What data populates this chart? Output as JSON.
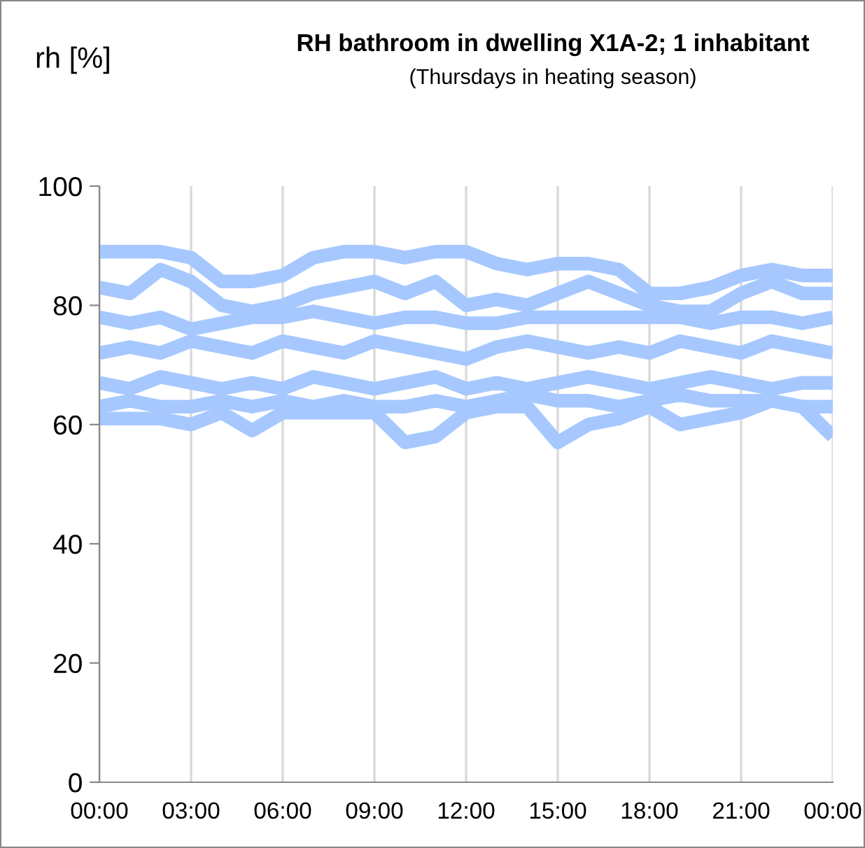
{
  "chart_data": {
    "type": "line",
    "title": "RH bathroom in dwelling X1A-2; 1 inhabitant",
    "subtitle": "(Thursdays in heating season)",
    "ylabel": "rh [%]",
    "x": [
      0,
      1,
      2,
      3,
      4,
      5,
      6,
      7,
      8,
      9,
      10,
      11,
      12,
      13,
      14,
      15,
      16,
      17,
      18,
      19,
      20,
      21,
      22,
      23,
      24
    ],
    "series": [
      {
        "color": "#a6c8ff",
        "values": [
          89,
          89,
          89,
          88,
          84,
          84,
          85,
          88,
          89,
          89,
          88,
          89,
          89,
          87,
          86,
          87,
          87,
          86,
          82,
          82,
          83,
          85,
          86,
          85,
          85
        ]
      },
      {
        "color": "#a6c8ff",
        "values": [
          83,
          82,
          86,
          84,
          80,
          79,
          80,
          82,
          83,
          84,
          82,
          84,
          80,
          81,
          80,
          82,
          84,
          82,
          80,
          79,
          79,
          82,
          84,
          82,
          82
        ]
      },
      {
        "color": "#a6c8ff",
        "values": [
          78,
          77,
          78,
          76,
          77,
          78,
          78,
          79,
          78,
          77,
          78,
          78,
          77,
          77,
          78,
          78,
          78,
          78,
          78,
          78,
          77,
          78,
          78,
          77,
          78
        ]
      },
      {
        "color": "#a6c8ff",
        "values": [
          72,
          73,
          72,
          74,
          73,
          72,
          74,
          73,
          72,
          74,
          73,
          72,
          71,
          73,
          74,
          73,
          72,
          73,
          72,
          74,
          73,
          72,
          74,
          73,
          72
        ]
      },
      {
        "color": "#a6c8ff",
        "values": [
          67,
          66,
          68,
          67,
          66,
          67,
          66,
          68,
          67,
          66,
          67,
          68,
          66,
          67,
          66,
          67,
          68,
          67,
          66,
          67,
          68,
          67,
          66,
          67,
          67
        ]
      },
      {
        "color": "#a6c8ff",
        "values": [
          63,
          64,
          63,
          63,
          64,
          63,
          64,
          63,
          64,
          63,
          63,
          64,
          63,
          64,
          65,
          64,
          64,
          63,
          64,
          65,
          64,
          64,
          64,
          63,
          63
        ]
      },
      {
        "color": "#a6c8ff",
        "values": [
          61,
          61,
          61,
          60,
          62,
          59,
          62,
          62,
          62,
          62,
          57,
          58,
          62,
          63,
          63,
          57,
          60,
          61,
          63,
          60,
          61,
          62,
          64,
          63,
          58
        ]
      }
    ],
    "xlim": [
      0,
      24
    ],
    "ylim": [
      0,
      100
    ],
    "xticks": [
      {
        "value": 0,
        "label": "00:00"
      },
      {
        "value": 3,
        "label": "03:00"
      },
      {
        "value": 6,
        "label": "06:00"
      },
      {
        "value": 9,
        "label": "09:00"
      },
      {
        "value": 12,
        "label": "12:00"
      },
      {
        "value": 15,
        "label": "15:00"
      },
      {
        "value": 18,
        "label": "18:00"
      },
      {
        "value": 21,
        "label": "21:00"
      },
      {
        "value": 24,
        "label": "00:00"
      }
    ],
    "yticks": [
      0,
      20,
      40,
      60,
      80,
      100
    ],
    "grid": "x",
    "legend": false,
    "marker": "none",
    "line_style": "solid"
  }
}
